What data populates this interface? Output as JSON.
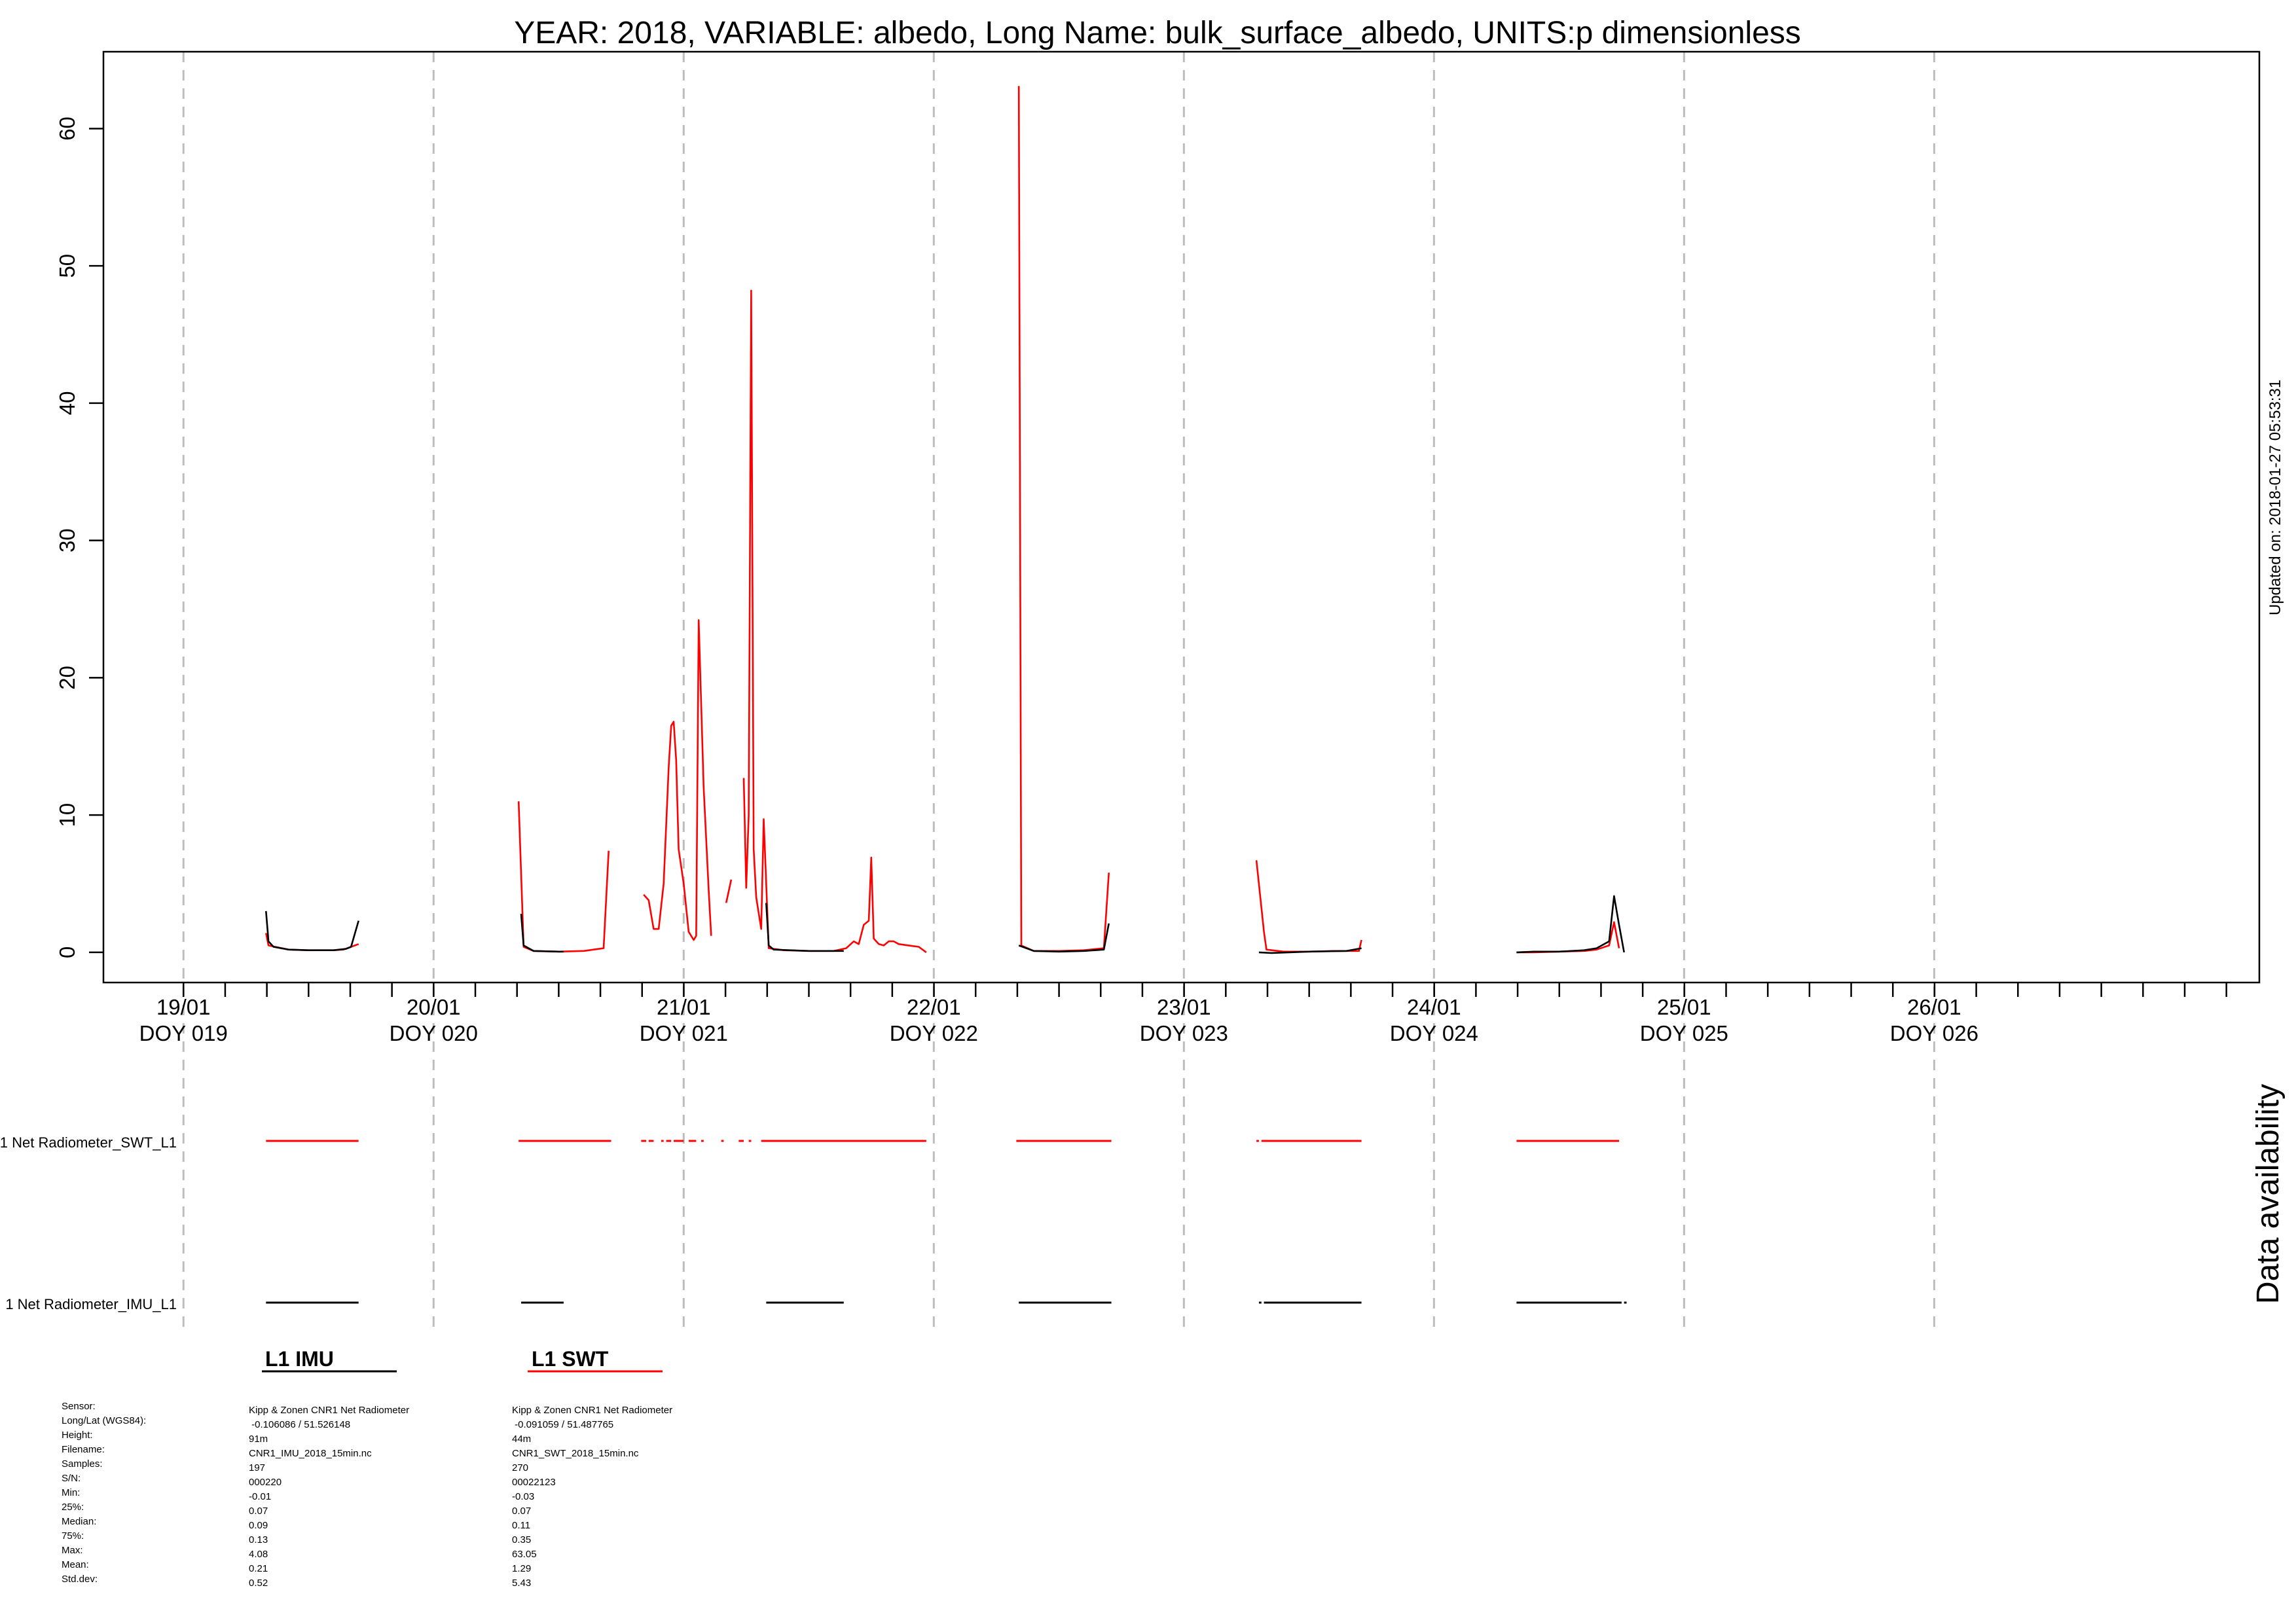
{
  "chart_data": {
    "type": "line",
    "title": "YEAR: 2018, VARIABLE: albedo, Long Name: bulk_surface_albedo, UNITS:p dimensionless",
    "side_note": "Updated on: 2018-01-27 05:53:31",
    "xlabel": "",
    "ylabel": "",
    "xlim": [
      18.68,
      27.3
    ],
    "ylim": [
      -2.2,
      65.6
    ],
    "y_ticks": [
      0,
      10,
      20,
      30,
      40,
      50,
      60
    ],
    "x_tick_labels": [
      {
        "doy": 19,
        "date": "19/01",
        "doy_label": "DOY 019"
      },
      {
        "doy": 20,
        "date": "20/01",
        "doy_label": "DOY 020"
      },
      {
        "doy": 21,
        "date": "21/01",
        "doy_label": "DOY 021"
      },
      {
        "doy": 22,
        "date": "22/01",
        "doy_label": "DOY 022"
      },
      {
        "doy": 23,
        "date": "23/01",
        "doy_label": "DOY 023"
      },
      {
        "doy": 24,
        "date": "24/01",
        "doy_label": "DOY 024"
      },
      {
        "doy": 25,
        "date": "25/01",
        "doy_label": "DOY 025"
      },
      {
        "doy": 26,
        "date": "26/01",
        "doy_label": "DOY 026"
      }
    ],
    "minor_tick_step": 0.1667,
    "grid": "vertical dashed at each day",
    "series": [
      {
        "name": "L1 IMU",
        "color": "#000000",
        "segments": [
          [
            [
              19.33,
              3.0
            ],
            [
              19.34,
              0.8
            ],
            [
              19.36,
              0.4
            ],
            [
              19.42,
              0.2
            ],
            [
              19.5,
              0.15
            ],
            [
              19.6,
              0.15
            ],
            [
              19.65,
              0.25
            ],
            [
              19.67,
              0.4
            ],
            [
              19.7,
              2.3
            ]
          ],
          [
            [
              20.35,
              2.8
            ],
            [
              20.36,
              0.5
            ],
            [
              20.4,
              0.1
            ],
            [
              20.5,
              0.05
            ],
            [
              20.52,
              0.05
            ]
          ],
          [
            [
              21.33,
              3.6
            ],
            [
              21.34,
              0.5
            ],
            [
              21.36,
              0.2
            ],
            [
              21.5,
              0.1
            ],
            [
              21.64,
              0.1
            ]
          ],
          [
            [
              22.34,
              0.5
            ],
            [
              22.4,
              0.1
            ],
            [
              22.5,
              0.05
            ],
            [
              22.6,
              0.1
            ],
            [
              22.68,
              0.2
            ],
            [
              22.7,
              2.1
            ]
          ],
          [
            [
              23.3,
              0.0
            ],
            [
              23.35,
              -0.05
            ],
            [
              23.5,
              0.05
            ],
            [
              23.65,
              0.1
            ],
            [
              23.71,
              0.3
            ]
          ],
          [
            [
              24.33,
              0.0
            ],
            [
              24.4,
              0.05
            ],
            [
              24.5,
              0.05
            ],
            [
              24.6,
              0.15
            ],
            [
              24.65,
              0.3
            ],
            [
              24.7,
              0.8
            ],
            [
              24.72,
              4.1
            ],
            [
              24.74,
              2.0
            ],
            [
              24.76,
              0.0
            ]
          ]
        ]
      },
      {
        "name": "L1 SWT",
        "color": "#ff0000",
        "segments": [
          [
            [
              19.33,
              1.4
            ],
            [
              19.34,
              0.5
            ],
            [
              19.38,
              0.35
            ],
            [
              19.42,
              0.2
            ],
            [
              19.5,
              0.15
            ],
            [
              19.6,
              0.15
            ],
            [
              19.64,
              0.2
            ],
            [
              19.67,
              0.4
            ],
            [
              19.7,
              0.6
            ]
          ],
          [
            [
              20.34,
              11.0
            ],
            [
              20.36,
              0.4
            ],
            [
              20.4,
              0.1
            ],
            [
              20.5,
              0.05
            ],
            [
              20.6,
              0.1
            ],
            [
              20.68,
              0.3
            ],
            [
              20.7,
              7.4
            ]
          ],
          [
            [
              20.84,
              4.2
            ],
            [
              20.86,
              3.8
            ],
            [
              20.88,
              1.7
            ],
            [
              20.9,
              1.7
            ],
            [
              20.92,
              5.0
            ],
            [
              20.94,
              13.5
            ],
            [
              20.95,
              16.5
            ],
            [
              20.96,
              16.8
            ],
            [
              20.97,
              14.0
            ],
            [
              20.98,
              7.5
            ],
            [
              21.0,
              5.0
            ],
            [
              21.02,
              1.5
            ],
            [
              21.04,
              0.9
            ],
            [
              21.05,
              1.2
            ],
            [
              21.06,
              24.2
            ],
            [
              21.08,
              12.0
            ],
            [
              21.1,
              4.5
            ],
            [
              21.11,
              1.2
            ]
          ],
          [
            [
              21.17,
              3.6
            ],
            [
              21.19,
              5.3
            ]
          ],
          [
            [
              21.24,
              12.7
            ],
            [
              21.25,
              4.7
            ],
            [
              21.26,
              10.0
            ],
            [
              21.27,
              48.2
            ],
            [
              21.28,
              7.5
            ],
            [
              21.29,
              4.0
            ],
            [
              21.31,
              1.7
            ],
            [
              21.32,
              9.7
            ],
            [
              21.34,
              0.3
            ],
            [
              21.4,
              0.15
            ],
            [
              21.5,
              0.1
            ],
            [
              21.6,
              0.1
            ],
            [
              21.65,
              0.3
            ],
            [
              21.68,
              0.8
            ],
            [
              21.7,
              0.6
            ],
            [
              21.72,
              2.0
            ],
            [
              21.74,
              2.3
            ],
            [
              21.75,
              6.9
            ],
            [
              21.76,
              1.0
            ],
            [
              21.78,
              0.6
            ],
            [
              21.8,
              0.5
            ],
            [
              21.82,
              0.8
            ],
            [
              21.84,
              0.8
            ],
            [
              21.86,
              0.6
            ],
            [
              21.9,
              0.5
            ],
            [
              21.94,
              0.4
            ],
            [
              21.97,
              0.0
            ]
          ],
          [
            [
              22.34,
              63.1
            ],
            [
              22.35,
              0.5
            ],
            [
              22.4,
              0.1
            ],
            [
              22.5,
              0.1
            ],
            [
              22.6,
              0.15
            ],
            [
              22.68,
              0.3
            ],
            [
              22.7,
              5.8
            ]
          ],
          [
            [
              23.29,
              6.7
            ],
            [
              23.32,
              1.5
            ],
            [
              23.33,
              0.2
            ],
            [
              23.4,
              0.05
            ],
            [
              23.5,
              0.05
            ],
            [
              23.6,
              0.1
            ],
            [
              23.7,
              0.1
            ],
            [
              23.71,
              0.9
            ]
          ],
          [
            [
              24.33,
              0.0
            ],
            [
              24.4,
              0.0
            ],
            [
              24.5,
              0.05
            ],
            [
              24.6,
              0.1
            ],
            [
              24.65,
              0.2
            ],
            [
              24.7,
              0.5
            ],
            [
              24.72,
              2.2
            ],
            [
              24.74,
              0.3
            ]
          ]
        ]
      }
    ],
    "availability": {
      "title": "Data availability",
      "rows": [
        {
          "label": "1 Net Radiometer_SWT_L1",
          "color": "#ff0000",
          "intervals": [
            [
              19.33,
              19.7
            ],
            [
              20.34,
              20.71
            ],
            [
              20.83,
              20.85
            ],
            [
              20.86,
              20.88
            ],
            [
              20.91,
              20.92
            ],
            [
              20.93,
              20.95
            ],
            [
              20.96,
              21.0
            ],
            [
              21.02,
              21.05
            ],
            [
              21.07,
              21.08
            ],
            [
              21.15,
              21.16
            ],
            [
              21.22,
              21.24
            ],
            [
              21.26,
              21.27
            ],
            [
              21.31,
              21.97
            ],
            [
              22.33,
              22.71
            ],
            [
              23.29,
              23.3
            ],
            [
              23.31,
              23.71
            ],
            [
              24.33,
              24.74
            ]
          ]
        },
        {
          "label": "1 Net Radiometer_IMU_L1",
          "color": "#000000",
          "intervals": [
            [
              19.33,
              19.7
            ],
            [
              20.35,
              20.52
            ],
            [
              21.33,
              21.64
            ],
            [
              22.34,
              22.71
            ],
            [
              23.3,
              23.31
            ],
            [
              23.32,
              23.71
            ],
            [
              24.33,
              24.75
            ],
            [
              24.76,
              24.77
            ]
          ]
        }
      ]
    },
    "legend": [
      {
        "name": "L1 IMU",
        "color": "#000000"
      },
      {
        "name": "L1 SWT",
        "color": "#ff0000"
      }
    ]
  },
  "stats": {
    "labels": [
      "Sensor:",
      "Long/Lat (WGS84):",
      "Height:",
      "Filename:",
      "Samples:",
      "S/N:",
      "Min:",
      "25%:",
      "Median:",
      "75%:",
      "Max:",
      "Mean:",
      "Std.dev:"
    ],
    "imu": [
      "Kipp & Zonen CNR1 Net Radiometer",
      " -0.106086 / 51.526148",
      "91m",
      "CNR1_IMU_2018_15min.nc",
      "197",
      "000220",
      "-0.01",
      "0.07",
      "0.09",
      "0.13",
      "4.08",
      "0.21",
      "0.52"
    ],
    "swt": [
      "Kipp & Zonen CNR1 Net Radiometer",
      " -0.091059 / 51.487765",
      "44m",
      "CNR1_SWT_2018_15min.nc",
      "270",
      "00022123",
      "-0.03",
      "0.07",
      "0.11",
      "0.35",
      "63.05",
      "1.29",
      "5.43"
    ]
  }
}
